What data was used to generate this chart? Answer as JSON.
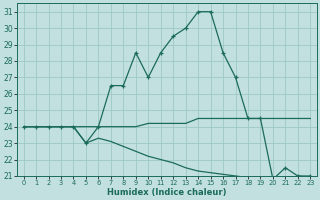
{
  "xlabel": "Humidex (Indice chaleur)",
  "ylabel": "",
  "bg_color": "#c2e0e0",
  "grid_color": "#9dc8c8",
  "line_color": "#1a6b5a",
  "xlim": [
    -0.5,
    23.5
  ],
  "ylim": [
    21,
    31.5
  ],
  "xticks": [
    0,
    1,
    2,
    3,
    4,
    5,
    6,
    7,
    8,
    9,
    10,
    11,
    12,
    13,
    14,
    15,
    16,
    17,
    18,
    19,
    20,
    21,
    22,
    23
  ],
  "yticks": [
    21,
    22,
    23,
    24,
    25,
    26,
    27,
    28,
    29,
    30,
    31
  ],
  "line1_x": [
    0,
    1,
    2,
    3,
    4,
    5,
    6,
    7,
    8,
    9,
    10,
    11,
    12,
    13,
    14,
    15,
    16,
    17,
    18,
    19,
    20,
    21,
    22,
    23
  ],
  "line1_y": [
    24,
    24,
    24,
    24,
    24,
    23,
    24,
    26.5,
    26.5,
    28.5,
    27,
    28.5,
    29.5,
    30,
    31,
    31,
    28.5,
    27,
    24.5,
    24.5,
    20.8,
    21.5,
    21,
    21
  ],
  "line2_x": [
    0,
    1,
    2,
    3,
    4,
    5,
    6,
    7,
    8,
    9,
    10,
    11,
    12,
    13,
    14,
    15,
    16,
    17,
    18,
    19,
    20,
    21,
    22,
    23
  ],
  "line2_y": [
    24,
    24,
    24,
    24,
    24,
    24,
    24,
    24,
    24,
    24,
    24.2,
    24.2,
    24.2,
    24.2,
    24.5,
    24.5,
    24.5,
    24.5,
    24.5,
    24.5,
    24.5,
    24.5,
    24.5,
    24.5
  ],
  "line3_x": [
    0,
    1,
    2,
    3,
    4,
    5,
    6,
    7,
    8,
    9,
    10,
    11,
    12,
    13,
    14,
    15,
    16,
    17,
    18,
    19,
    20,
    21,
    22,
    23
  ],
  "line3_y": [
    24,
    24,
    24,
    24,
    24,
    23,
    23.3,
    23.1,
    22.8,
    22.5,
    22.2,
    22.0,
    21.8,
    21.5,
    21.3,
    21.2,
    21.1,
    21.0,
    20.9,
    20.9,
    20.8,
    20.8,
    21.0,
    20.9
  ]
}
